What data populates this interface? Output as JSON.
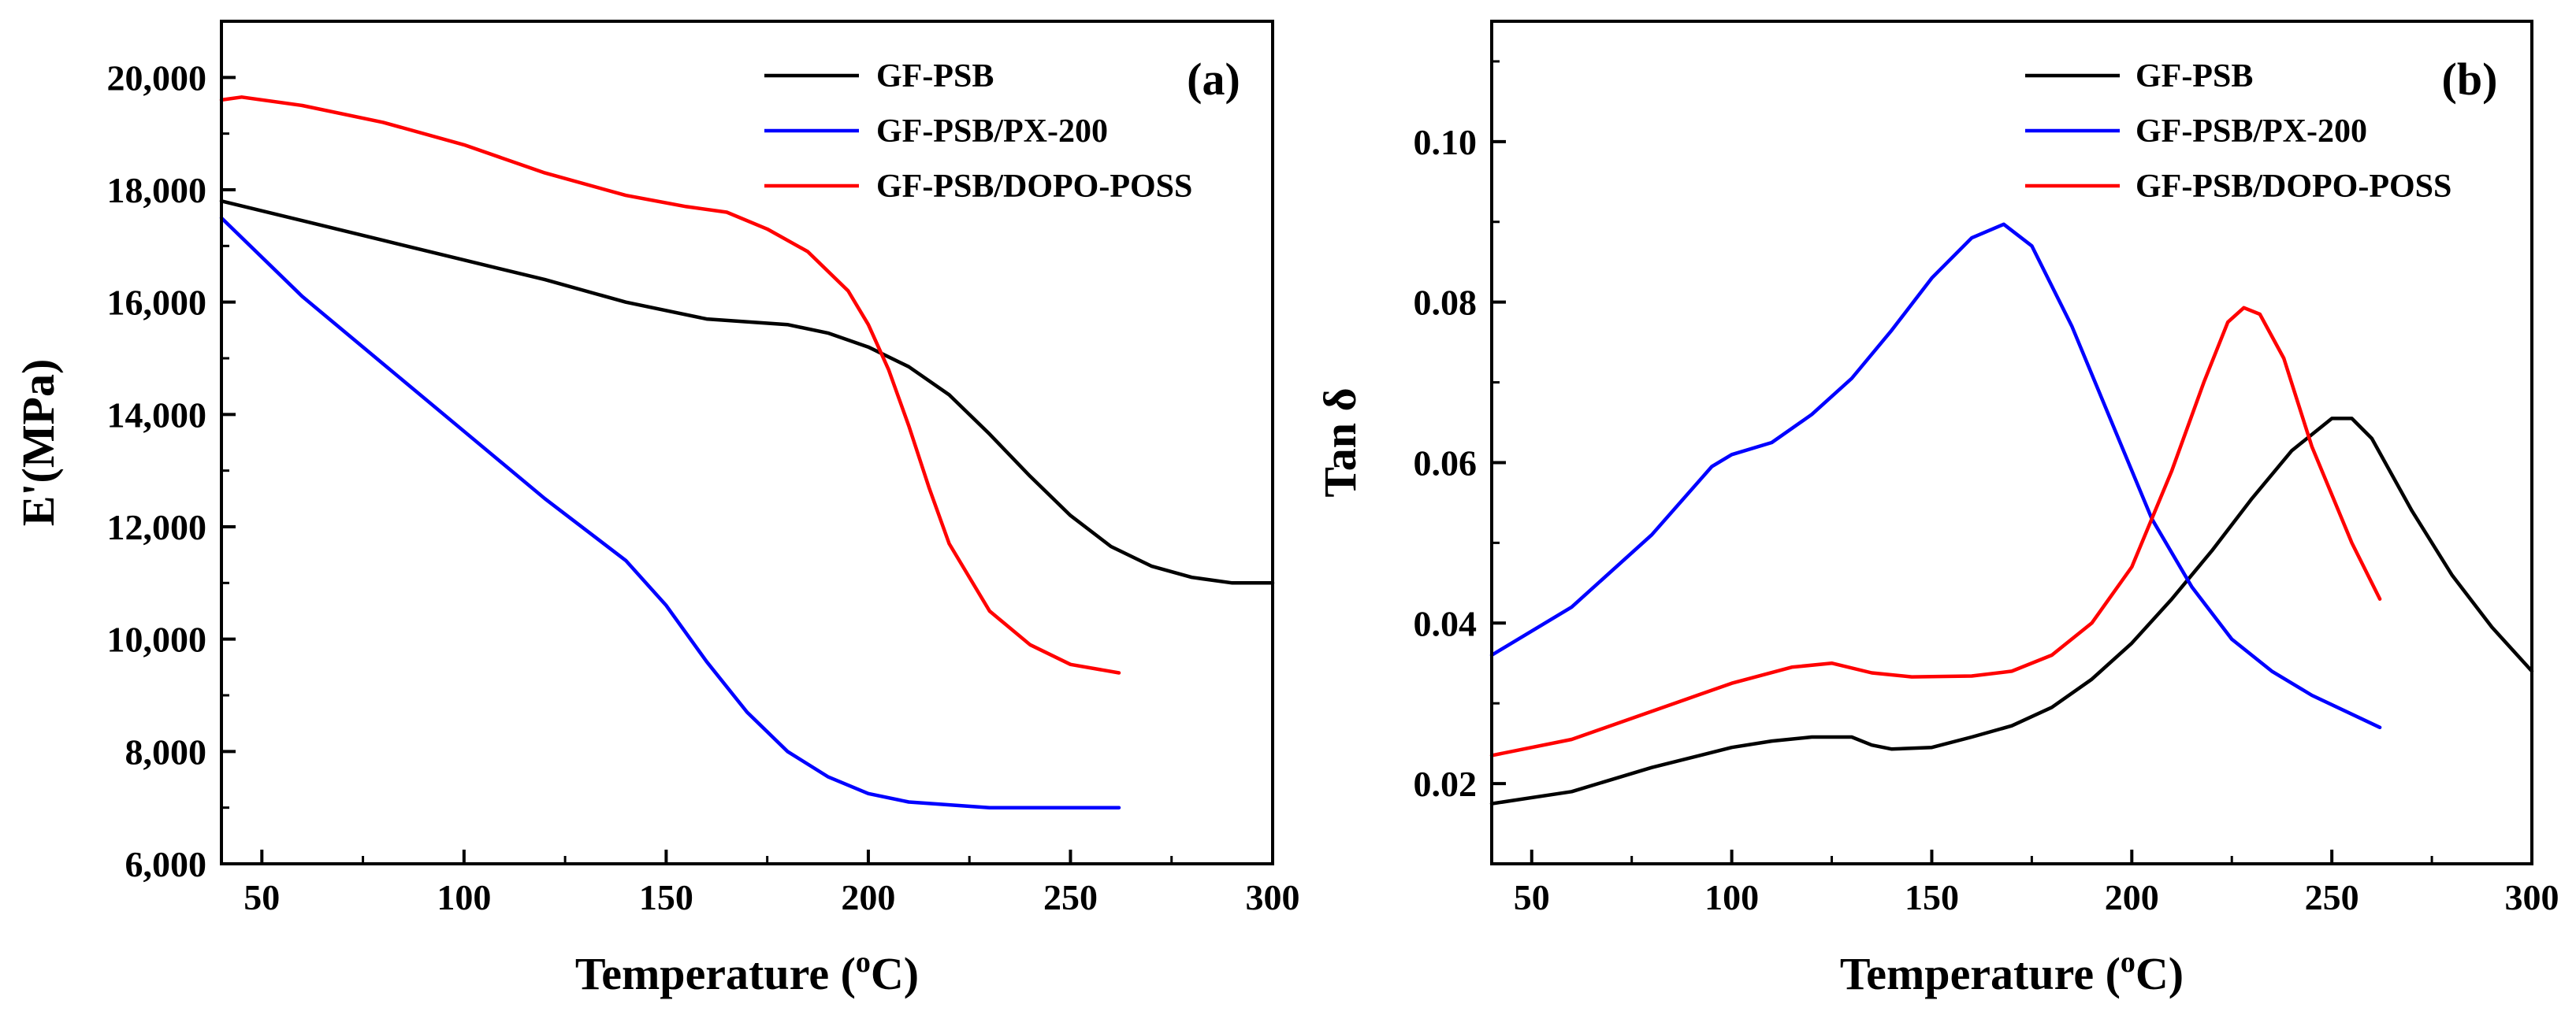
{
  "chart_data": [
    {
      "type": "line",
      "panel_label": "(a)",
      "xlabel": "Temperature (",
      "xlabel_sup": "o",
      "xlabel_end": "C)",
      "ylabel": "E'(MPa)",
      "xlim": [
        40,
        300
      ],
      "ylim": [
        6000,
        21000
      ],
      "xticks": [
        50,
        100,
        150,
        200,
        250,
        300
      ],
      "xtick_labels": [
        "50",
        "100",
        "150",
        "200",
        "250",
        "300"
      ],
      "yticks": [
        6000,
        8000,
        10000,
        12000,
        14000,
        16000,
        18000,
        20000
      ],
      "ytick_labels": [
        "6,000",
        "8,000",
        "10,000",
        "12,000",
        "14,000",
        "16,000",
        "18,000",
        "20,000"
      ],
      "legend_position": "top-right",
      "series": [
        {
          "name": "GF-PSB",
          "color": "#000000",
          "x": [
            40,
            60,
            80,
            100,
            120,
            140,
            160,
            180,
            190,
            200,
            210,
            220,
            230,
            240,
            250,
            260,
            270,
            280,
            290,
            300
          ],
          "y": [
            17800,
            17450,
            17100,
            16750,
            16400,
            16000,
            15700,
            15600,
            15450,
            15200,
            14850,
            14350,
            13650,
            12900,
            12200,
            11650,
            11300,
            11100,
            11000,
            11000
          ]
        },
        {
          "name": "GF-PSB/PX-200",
          "color": "#0000ff",
          "x": [
            40,
            60,
            80,
            100,
            120,
            140,
            150,
            160,
            170,
            180,
            190,
            200,
            210,
            220,
            230,
            240,
            250,
            262
          ],
          "y": [
            17500,
            16100,
            14900,
            13700,
            12500,
            11400,
            10600,
            9600,
            8700,
            8000,
            7550,
            7250,
            7100,
            7050,
            7000,
            7000,
            7000,
            7000
          ]
        },
        {
          "name": "GF-PSB/DOPO-POSS",
          "color": "#ff0000",
          "x": [
            40,
            45,
            60,
            80,
            100,
            120,
            140,
            155,
            165,
            175,
            185,
            195,
            200,
            205,
            210,
            215,
            220,
            230,
            240,
            250,
            262
          ],
          "y": [
            19600,
            19650,
            19500,
            19200,
            18800,
            18300,
            17900,
            17700,
            17600,
            17300,
            16900,
            16200,
            15600,
            14800,
            13800,
            12700,
            11700,
            10500,
            9900,
            9550,
            9400
          ]
        }
      ]
    },
    {
      "type": "line",
      "panel_label": "(b)",
      "xlabel": "Temperature (",
      "xlabel_sup": "o",
      "xlabel_end": "C)",
      "ylabel": "Tan δ",
      "xlim": [
        40,
        300
      ],
      "ylim": [
        0.01,
        0.115
      ],
      "xticks": [
        50,
        100,
        150,
        200,
        250,
        300
      ],
      "xtick_labels": [
        "50",
        "100",
        "150",
        "200",
        "250",
        "300"
      ],
      "yticks": [
        0.02,
        0.04,
        0.06,
        0.08,
        0.1
      ],
      "ytick_labels": [
        "0.02",
        "0.04",
        "0.06",
        "0.08",
        "0.10"
      ],
      "legend_position": "top-right",
      "series": [
        {
          "name": "GF-PSB",
          "color": "#000000",
          "x": [
            40,
            60,
            80,
            100,
            110,
            120,
            130,
            135,
            140,
            150,
            160,
            170,
            180,
            190,
            200,
            210,
            220,
            230,
            240,
            250,
            255,
            260,
            270,
            280,
            290,
            300
          ],
          "y": [
            0.0175,
            0.019,
            0.022,
            0.0245,
            0.0253,
            0.0258,
            0.0258,
            0.0248,
            0.0243,
            0.0245,
            0.0258,
            0.0272,
            0.0295,
            0.033,
            0.0375,
            0.043,
            0.049,
            0.0555,
            0.0615,
            0.0655,
            0.0655,
            0.063,
            0.054,
            0.046,
            0.0395,
            0.034
          ]
        },
        {
          "name": "GF-PSB/PX-200",
          "color": "#0000ff",
          "x": [
            40,
            60,
            80,
            95,
            100,
            110,
            120,
            130,
            140,
            150,
            160,
            168,
            175,
            185,
            195,
            205,
            215,
            225,
            235,
            245,
            262
          ],
          "y": [
            0.036,
            0.042,
            0.051,
            0.0595,
            0.061,
            0.0625,
            0.066,
            0.0705,
            0.0765,
            0.083,
            0.088,
            0.0897,
            0.087,
            0.077,
            0.065,
            0.053,
            0.0445,
            0.038,
            0.034,
            0.031,
            0.027
          ]
        },
        {
          "name": "GF-PSB/DOPO-POSS",
          "color": "#ff0000",
          "x": [
            40,
            60,
            80,
            100,
            115,
            125,
            135,
            145,
            160,
            170,
            180,
            190,
            200,
            210,
            218,
            224,
            228,
            232,
            238,
            245,
            255,
            262
          ],
          "y": [
            0.0235,
            0.0255,
            0.029,
            0.0325,
            0.0345,
            0.035,
            0.0338,
            0.0333,
            0.0334,
            0.034,
            0.036,
            0.04,
            0.047,
            0.059,
            0.07,
            0.0775,
            0.0793,
            0.0785,
            0.073,
            0.062,
            0.05,
            0.043
          ]
        }
      ]
    }
  ]
}
